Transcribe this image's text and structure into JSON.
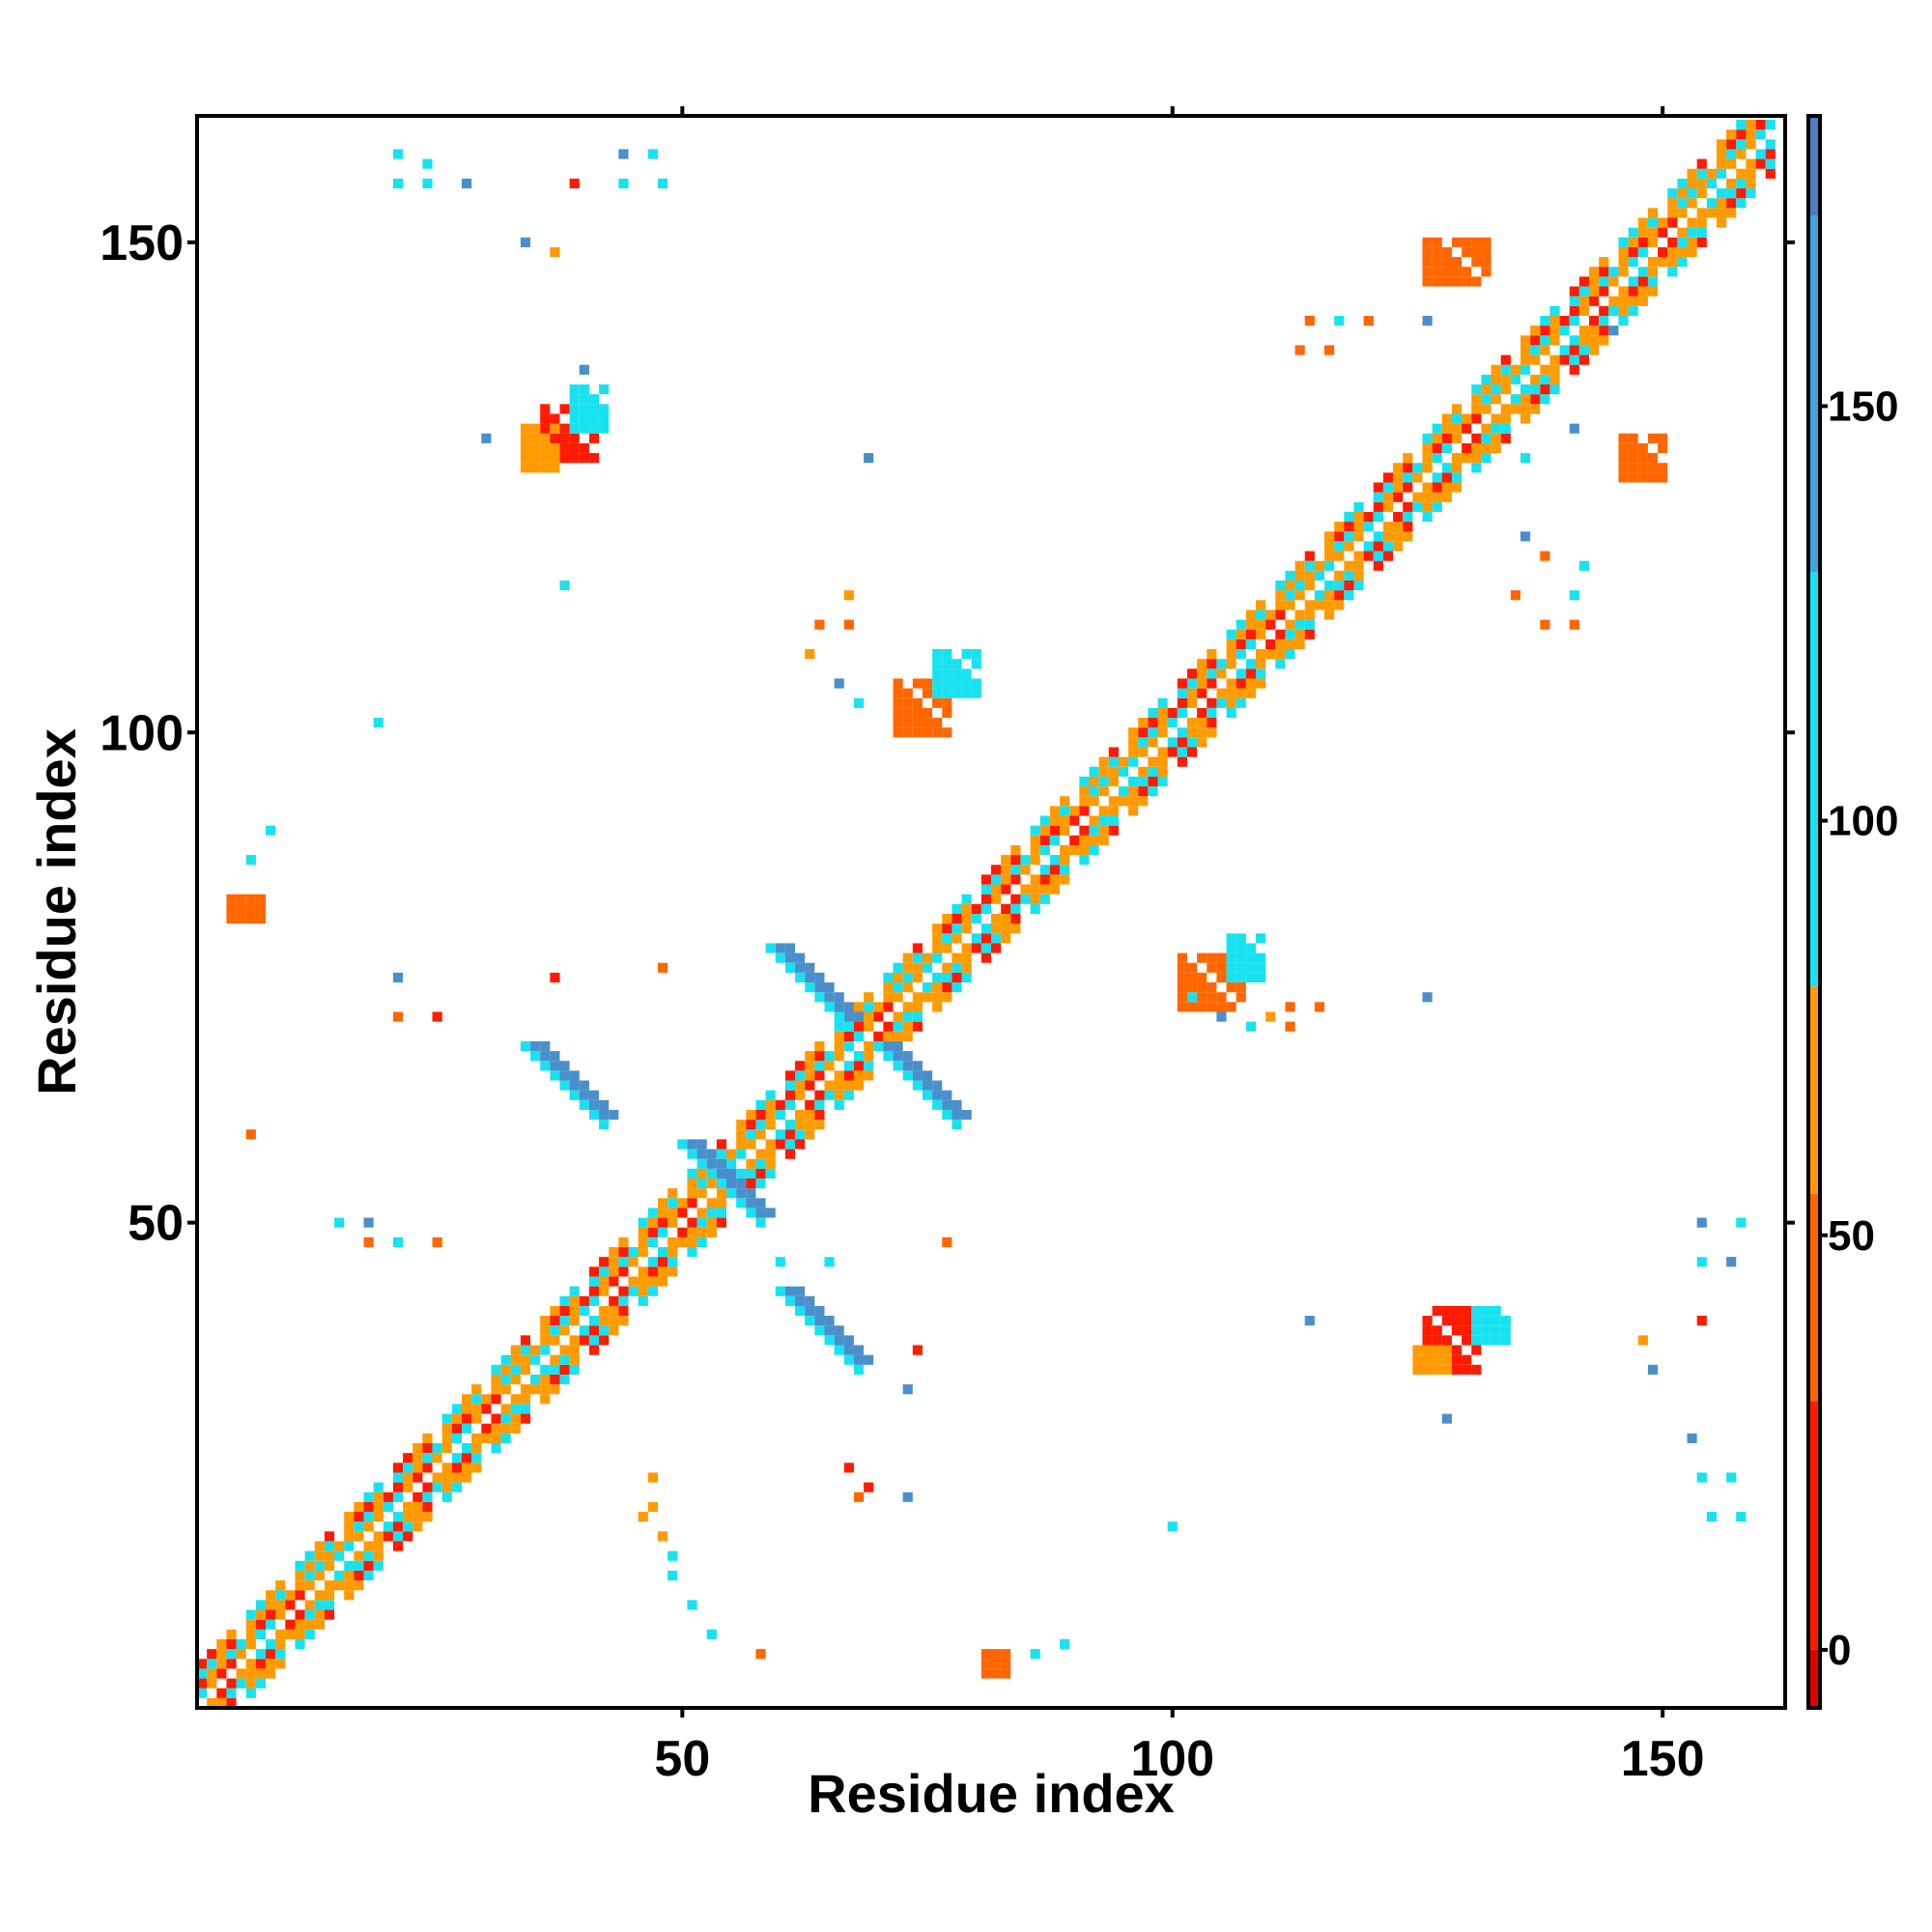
{
  "chart_data": {
    "type": "heatmap",
    "title": "",
    "xlabel": "Residue index",
    "ylabel": "Residue index",
    "xlim": [
      1,
      162
    ],
    "ylim": [
      1,
      162
    ],
    "xticks": [
      50,
      100,
      150
    ],
    "yticks": [
      50,
      100,
      150
    ],
    "tick_labels": [
      "50",
      "100",
      "150"
    ],
    "colorbar": {
      "range": [
        -7,
        185
      ],
      "ticks": [
        0,
        50,
        100,
        150
      ],
      "tick_labels": [
        "0",
        "50",
        "100",
        "150"
      ],
      "bands": [
        {
          "from": -7,
          "to": 0,
          "color": "#e00000"
        },
        {
          "from": 0,
          "to": 30,
          "color": "#ff1a00"
        },
        {
          "from": 30,
          "to": 55,
          "color": "#ff6600"
        },
        {
          "from": 55,
          "to": 80,
          "color": "#ff9a00"
        },
        {
          "from": 80,
          "to": 130,
          "color": "#18e2f0"
        },
        {
          "from": 130,
          "to": 173,
          "color": "#3ea6dd"
        },
        {
          "from": 173,
          "to": 185,
          "color": "#4a7fc0"
        },
        {
          "from": 185,
          "to": 192,
          "color": "#ffffff"
        }
      ]
    },
    "colors": {
      "red": "#ff1a00",
      "orange_red": "#ff6600",
      "orange": "#ff9a00",
      "cyan": "#18e2f0",
      "steel_blue": "#4a8fcb"
    },
    "diagonal_band": {
      "start": 1,
      "end": 161,
      "color_sequence": [
        "orange",
        "orange",
        "orange",
        "cyan",
        "cyan",
        "orange",
        "red",
        "red",
        "orange",
        "orange",
        "cyan",
        "cyan",
        "orange",
        "red",
        "red",
        "orange",
        "orange",
        "orange",
        "cyan",
        "cyan"
      ]
    },
    "blocks": [
      {
        "x": [
          36,
          41
        ],
        "y": [
          128,
          133
        ],
        "color": "red"
      },
      {
        "x": [
          34,
          37
        ],
        "y": [
          127,
          131
        ],
        "color": "orange"
      },
      {
        "x": [
          39,
          42
        ],
        "y": [
          131,
          135
        ],
        "color": "cyan"
      },
      {
        "x": [
          72,
          77
        ],
        "y": [
          100,
          105
        ],
        "color": "orange_red"
      },
      {
        "x": [
          76,
          80
        ],
        "y": [
          104,
          108
        ],
        "color": "cyan"
      },
      {
        "x": [
          101,
          107
        ],
        "y": [
          72,
          77
        ],
        "color": "orange_red"
      },
      {
        "x": [
          106,
          109
        ],
        "y": [
          75,
          79
        ],
        "color": "cyan"
      },
      {
        "x": [
          126,
          131
        ],
        "y": [
          35,
          41
        ],
        "color": "red"
      },
      {
        "x": [
          125,
          128
        ],
        "y": [
          35,
          37
        ],
        "color": "orange"
      },
      {
        "x": [
          131,
          134
        ],
        "y": [
          38,
          41
        ],
        "color": "cyan"
      },
      {
        "x": [
          126,
          132
        ],
        "y": [
          146,
          150
        ],
        "color": "orange_red"
      },
      {
        "x": [
          146,
          150
        ],
        "y": [
          126,
          130
        ],
        "color": "orange_red"
      },
      {
        "x": [
          4,
          7
        ],
        "y": [
          81,
          83
        ],
        "color": "orange_red"
      },
      {
        "x": [
          81,
          83
        ],
        "y": [
          4,
          6
        ],
        "color": "orange_red"
      }
    ],
    "strips": [
      {
        "x": [
          60,
          68
        ],
        "y": [
          71,
          78
        ],
        "direction": "down",
        "color": "steel_blue"
      },
      {
        "x": [
          71,
          78
        ],
        "y": [
          60,
          68
        ],
        "direction": "down",
        "color": "steel_blue"
      },
      {
        "x": [
          35,
          43
        ],
        "y": [
          61,
          68
        ],
        "direction": "down",
        "color": "steel_blue"
      },
      {
        "x": [
          61,
          68
        ],
        "y": [
          35,
          43
        ],
        "direction": "down",
        "color": "steel_blue"
      },
      {
        "x": [
          51,
          58
        ],
        "y": [
          51,
          58
        ],
        "direction": "down",
        "color": "steel_blue"
      }
    ],
    "scattered_points": [
      [
        21,
        159,
        "cyan"
      ],
      [
        24,
        158,
        "cyan"
      ],
      [
        21,
        156,
        "cyan"
      ],
      [
        24,
        156,
        "cyan"
      ],
      [
        28,
        156,
        "steel_blue"
      ],
      [
        44,
        159,
        "steel_blue"
      ],
      [
        47,
        159,
        "cyan"
      ],
      [
        44,
        156,
        "cyan"
      ],
      [
        48,
        156,
        "cyan"
      ],
      [
        39,
        156,
        "red"
      ],
      [
        34,
        150,
        "steel_blue"
      ],
      [
        37,
        149,
        "orange"
      ],
      [
        40,
        137,
        "steel_blue"
      ],
      [
        30,
        130,
        "steel_blue"
      ],
      [
        38,
        115,
        "cyan"
      ],
      [
        19,
        101,
        "cyan"
      ],
      [
        8,
        90,
        "cyan"
      ],
      [
        6,
        87,
        "cyan"
      ],
      [
        67,
        114,
        "orange"
      ],
      [
        64,
        111,
        "orange_red"
      ],
      [
        67,
        111,
        "orange_red"
      ],
      [
        63,
        108,
        "orange"
      ],
      [
        66,
        105,
        "steel_blue"
      ],
      [
        68,
        103,
        "cyan"
      ],
      [
        69,
        128,
        "steel_blue"
      ],
      [
        21,
        75,
        "steel_blue"
      ],
      [
        21,
        71,
        "orange_red"
      ],
      [
        25,
        71,
        "red"
      ],
      [
        37,
        75,
        "red"
      ],
      [
        48,
        76,
        "orange_red"
      ],
      [
        6,
        59,
        "orange_red"
      ],
      [
        15,
        50,
        "cyan"
      ],
      [
        18,
        50,
        "steel_blue"
      ],
      [
        18,
        48,
        "orange_red"
      ],
      [
        21,
        48,
        "cyan"
      ],
      [
        25,
        48,
        "orange_red"
      ],
      [
        77,
        48,
        "orange_red"
      ],
      [
        60,
        46,
        "cyan"
      ],
      [
        65,
        46,
        "cyan"
      ],
      [
        74,
        37,
        "red"
      ],
      [
        73,
        33,
        "steel_blue"
      ],
      [
        67,
        25,
        "red"
      ],
      [
        69,
        23,
        "red"
      ],
      [
        68,
        22,
        "orange_red"
      ],
      [
        73,
        22,
        "steel_blue"
      ],
      [
        47,
        24,
        "orange"
      ],
      [
        47,
        21,
        "orange"
      ],
      [
        46,
        20,
        "orange"
      ],
      [
        48,
        18,
        "orange"
      ],
      [
        49,
        16,
        "cyan"
      ],
      [
        49,
        14,
        "cyan"
      ],
      [
        51,
        11,
        "cyan"
      ],
      [
        53,
        8,
        "cyan"
      ],
      [
        58,
        6,
        "orange_red"
      ],
      [
        86,
        6,
        "cyan"
      ],
      [
        89,
        7,
        "cyan"
      ],
      [
        100,
        19,
        "cyan"
      ],
      [
        112,
        72,
        "orange_red"
      ],
      [
        112,
        70,
        "orange_red"
      ],
      [
        115,
        72,
        "orange_red"
      ],
      [
        102,
        73,
        "cyan"
      ],
      [
        105,
        71,
        "steel_blue"
      ],
      [
        108,
        70,
        "cyan"
      ],
      [
        110,
        71,
        "orange"
      ],
      [
        126,
        73,
        "steel_blue"
      ],
      [
        114,
        40,
        "steel_blue"
      ],
      [
        114,
        142,
        "orange_red"
      ],
      [
        117,
        142,
        "cyan"
      ],
      [
        120,
        142,
        "orange_red"
      ],
      [
        113,
        139,
        "orange_red"
      ],
      [
        116,
        139,
        "orange_red"
      ],
      [
        126,
        142,
        "steel_blue"
      ],
      [
        136,
        120,
        "steel_blue"
      ],
      [
        138,
        118,
        "orange_red"
      ],
      [
        142,
        117,
        "cyan"
      ],
      [
        135,
        114,
        "orange_red"
      ],
      [
        141,
        114,
        "cyan"
      ],
      [
        138,
        111,
        "orange_red"
      ],
      [
        141,
        111,
        "orange_red"
      ],
      [
        141,
        131,
        "steel_blue"
      ],
      [
        145,
        141,
        "steel_blue"
      ],
      [
        136,
        128,
        "cyan"
      ],
      [
        154,
        50,
        "steel_blue"
      ],
      [
        158,
        50,
        "cyan"
      ],
      [
        154,
        46,
        "cyan"
      ],
      [
        157,
        46,
        "steel_blue"
      ],
      [
        154,
        40,
        "red"
      ],
      [
        148,
        38,
        "orange"
      ],
      [
        149,
        35,
        "steel_blue"
      ],
      [
        128,
        30,
        "steel_blue"
      ],
      [
        153,
        28,
        "steel_blue"
      ],
      [
        154,
        24,
        "cyan"
      ],
      [
        157,
        24,
        "cyan"
      ],
      [
        155,
        20,
        "cyan"
      ],
      [
        158,
        20,
        "cyan"
      ]
    ]
  }
}
